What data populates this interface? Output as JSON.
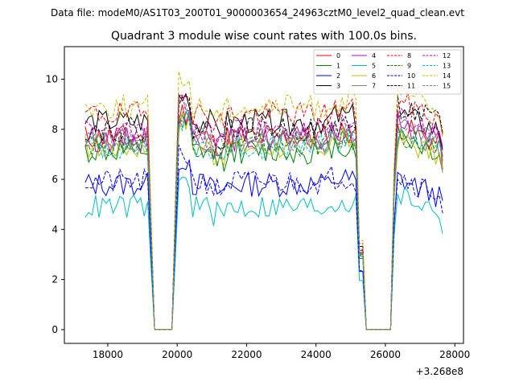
{
  "chart_data": {
    "type": "line",
    "suptitle": "Data file: modeM0/AS1T03_200T01_9000003654_24963cztM0_level2_quad_clean.evt",
    "title": "Quadrant 3 module wise count rates with 100.0s bins.",
    "xlabel": "",
    "ylabel": "",
    "offset_label": "+3.268e8",
    "xlim": [
      16750,
      28250
    ],
    "ylim": [
      -0.55,
      11.3
    ],
    "xticks": [
      18000,
      20000,
      22000,
      24000,
      26000,
      28000
    ],
    "xtick_labels": [
      "18000",
      "20000",
      "22000",
      "24000",
      "26000",
      "28000"
    ],
    "yticks": [
      0,
      2,
      4,
      6,
      8,
      10
    ],
    "ytick_labels": [
      "0",
      "2",
      "4",
      "6",
      "8",
      "10"
    ],
    "x": {
      "start": 17350,
      "step": 100,
      "count": 104
    },
    "time_profile": {
      "segments": [
        {
          "x": [
            17350,
            19150
          ]
        },
        {
          "drop": [
            19150,
            19350
          ]
        },
        {
          "zero": [
            19350,
            19850
          ]
        },
        {
          "rise": [
            19850,
            20050
          ]
        },
        {
          "x": [
            20050,
            25150
          ]
        },
        {
          "drop": [
            25150,
            25450
          ]
        },
        {
          "zero": [
            25450,
            26150
          ]
        },
        {
          "rise": [
            26150,
            26350
          ]
        },
        {
          "x": [
            26350,
            27650
          ]
        }
      ]
    },
    "series": [
      {
        "name": "0",
        "color": "#ff0000",
        "dash": "solid",
        "base": 7.7,
        "seg3": 8.0,
        "seed": 11
      },
      {
        "name": "1",
        "color": "#008000",
        "dash": "solid",
        "base": 7.1,
        "seg3": 7.6,
        "seed": 12
      },
      {
        "name": "2",
        "color": "#0000ff",
        "dash": "solid",
        "base": 5.8,
        "seg3": 5.9,
        "seed": 13
      },
      {
        "name": "3",
        "color": "#000000",
        "dash": "solid",
        "base": 8.3,
        "seg3": 8.5,
        "seed": 14
      },
      {
        "name": "4",
        "color": "#bf00bf",
        "dash": "solid",
        "base": 7.6,
        "seg3": 8.2,
        "seed": 15
      },
      {
        "name": "5",
        "color": "#00bfbf",
        "dash": "solid",
        "base": 4.9,
        "seg3": 5.3,
        "seed": 16
      },
      {
        "name": "6",
        "color": "#bfbf00",
        "dash": "solid",
        "base": 7.3,
        "seg3": 7.5,
        "seed": 17
      },
      {
        "name": "7",
        "color": "#808080",
        "dash": "solid",
        "base": 7.5,
        "seg3": 7.9,
        "seed": 18
      },
      {
        "name": "8",
        "color": "#ff0000",
        "dash": "dashed",
        "base": 8.6,
        "seg3": 9.0,
        "seed": 19
      },
      {
        "name": "9",
        "color": "#008000",
        "dash": "dashed",
        "base": 7.4,
        "seg3": 7.7,
        "seed": 20
      },
      {
        "name": "10",
        "color": "#0000ff",
        "dash": "dashed",
        "base": 5.9,
        "seg3": 6.0,
        "seed": 21
      },
      {
        "name": "11",
        "color": "#000000",
        "dash": "dashed",
        "base": 8.0,
        "seg3": 8.8,
        "seed": 22
      },
      {
        "name": "12",
        "color": "#bf00bf",
        "dash": "dashed",
        "base": 7.9,
        "seg3": 8.4,
        "seed": 23
      },
      {
        "name": "13",
        "color": "#00bfbf",
        "dash": "dashed",
        "base": 7.3,
        "seg3": 7.8,
        "seed": 24
      },
      {
        "name": "14",
        "color": "#bfbf00",
        "dash": "dashed",
        "base": 8.9,
        "seg3": 9.3,
        "seed": 25
      },
      {
        "name": "15",
        "color": "#808080",
        "dash": "dashed",
        "base": 7.6,
        "seg3": 8.0,
        "seed": 26
      }
    ],
    "legend_location": "top-right",
    "legend_columns": 4
  }
}
